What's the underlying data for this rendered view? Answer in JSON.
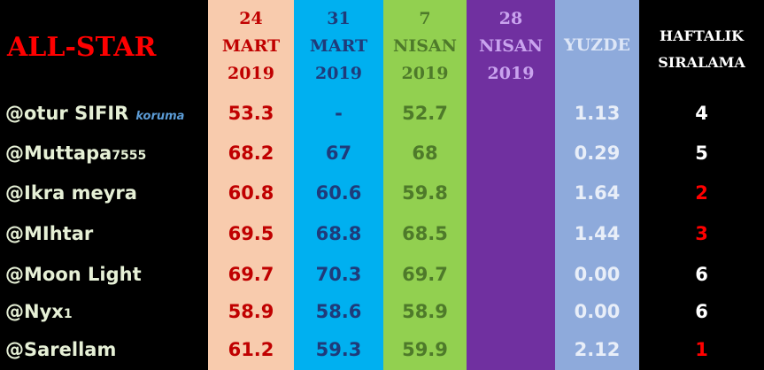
{
  "header": {
    "title": "ALL-STAR",
    "columns": [
      {
        "lines": [
          "24",
          "MART",
          "2019"
        ],
        "color": "#c00000",
        "background": "#f8cbad"
      },
      {
        "lines": [
          "31",
          "MART",
          "2019"
        ],
        "color": "#1f3b7a",
        "background": "#00b0f0"
      },
      {
        "lines": [
          "7",
          "NISAN",
          "2019"
        ],
        "color": "#4e7a2a",
        "background": "#92d050"
      },
      {
        "lines": [
          "28",
          "NISAN",
          "2019"
        ],
        "color": "#c9a3ee",
        "background": "#7030a0"
      },
      {
        "lines": [
          "YUZDE"
        ],
        "color": "#dde6f7",
        "background": "#8eaadb"
      },
      {
        "lines": [
          "HAFTALIK",
          "SIRALAMA"
        ],
        "color": "#ffffff",
        "background": "#000000"
      }
    ]
  },
  "table": {
    "rows": [
      {
        "name": "@otur SIFIR",
        "note": "koruma",
        "m24": "53.3",
        "m31": "-",
        "n7": "52.7",
        "yuzde": "1.13",
        "rank": "4",
        "rank_color": "#ffffff"
      },
      {
        "name": "@Muttapa",
        "suffix": "7555",
        "m24": "68.2",
        "m31": "67",
        "n7": "68",
        "yuzde": "0.29",
        "rank": "5",
        "rank_color": "#ffffff"
      },
      {
        "name": "@Ikra meyra",
        "m24": "60.8",
        "m31": "60.6",
        "n7": "59.8",
        "yuzde": "1.64",
        "rank": "2",
        "rank_color": "#ff0000"
      },
      {
        "name": "@MIhtar",
        "m24": "69.5",
        "m31": "68.8",
        "n7": "68.5",
        "yuzde": "1.44",
        "rank": "3",
        "rank_color": "#ff0000"
      },
      {
        "name": "@Moon Light",
        "m24": "69.7",
        "m31": "70.3",
        "n7": "69.7",
        "yuzde": "0.00",
        "rank": "6",
        "rank_color": "#ffffff"
      },
      {
        "name": "@Nyx",
        "suffix": "1",
        "m24": "58.9",
        "m31": "58.6",
        "n7": "58.9",
        "yuzde": "0.00",
        "rank": "6",
        "rank_color": "#ffffff"
      },
      {
        "name": "@Sarellam",
        "m24": "61.2",
        "m31": "59.3",
        "n7": "59.9",
        "yuzde": "2.12",
        "rank": "1",
        "rank_color": "#ff0000"
      }
    ]
  }
}
